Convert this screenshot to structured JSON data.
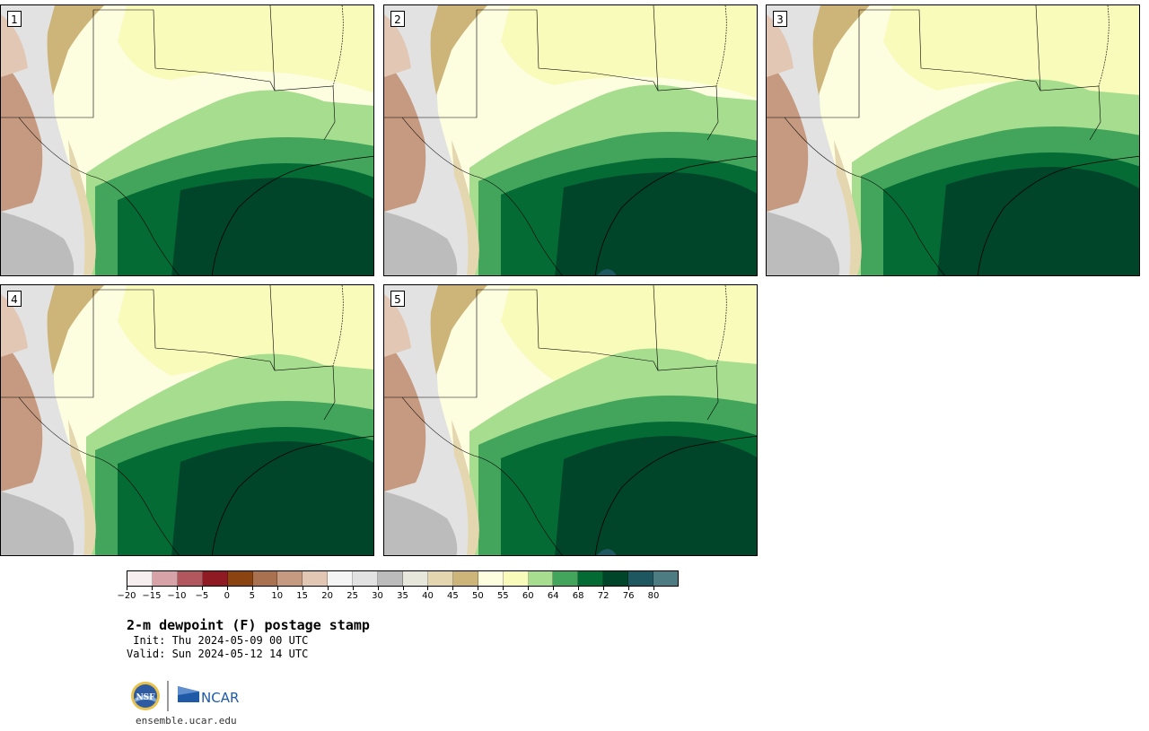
{
  "panels": [
    {
      "label": "1",
      "variant": 1
    },
    {
      "label": "2",
      "variant": 2
    },
    {
      "label": "3",
      "variant": 3
    },
    {
      "label": "4",
      "variant": 4
    },
    {
      "label": "5",
      "variant": 5
    }
  ],
  "colorbar": {
    "colors": [
      "#f7efef",
      "#d8a3a8",
      "#b3575f",
      "#8f1a24",
      "#8a4311",
      "#a9714f",
      "#c59a80",
      "#e3c7b5",
      "#f4f4f4",
      "#e2e2e2",
      "#bcbcbc",
      "#e7e7dc",
      "#e4d7b0",
      "#cdb479",
      "#fdfde0",
      "#f9fbbb",
      "#a7dd8f",
      "#43a55b",
      "#046b35",
      "#00452a",
      "#1f5760",
      "#4e7c83"
    ],
    "tick_labels": [
      "−20",
      "−15",
      "−10",
      "−5",
      "0",
      "5",
      "10",
      "15",
      "20",
      "25",
      "30",
      "35",
      "40",
      "45",
      "50",
      "55",
      "60",
      "64",
      "68",
      "72",
      "76",
      "80"
    ]
  },
  "title": "2-m dewpoint (F) postage stamp",
  "init": " Init: Thu 2024-05-09 00 UTC",
  "valid": "Valid: Sun 2024-05-12 14 UTC",
  "logos": {
    "nsf": "NSF",
    "ncar": "NCAR"
  },
  "site": "ensemble.ucar.edu"
}
